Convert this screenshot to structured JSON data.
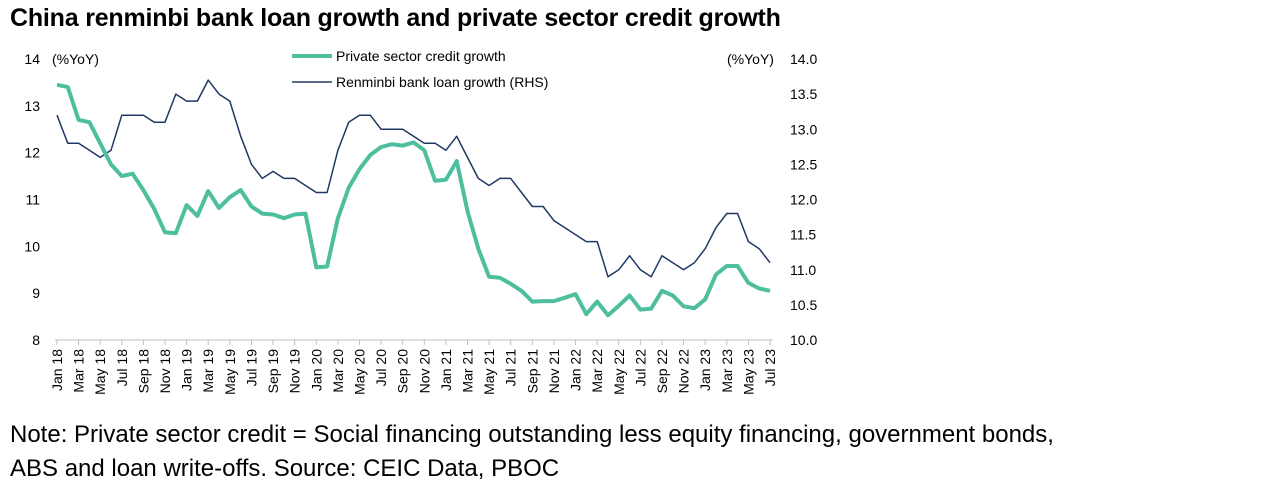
{
  "title": "China renminbi bank loan growth and private sector credit growth",
  "note": {
    "line1": "Note: Private sector credit = Social financing outstanding less equity financing, government bonds,",
    "line2": "ABS and loan write-offs. Source: CEIC Data, PBOC"
  },
  "colors": {
    "private": "#4dbf9e",
    "loan": "#1f3864"
  },
  "chart_data": {
    "type": "line",
    "title": "China renminbi bank loan growth and private sector credit growth",
    "left_axis": {
      "unit": "(%YoY)",
      "ylim": [
        8,
        14
      ],
      "ticks": [
        "14",
        "13",
        "12",
        "11",
        "10",
        "9",
        "8"
      ]
    },
    "right_axis": {
      "unit": "(%YoY)",
      "ylim": [
        10.0,
        14.0
      ],
      "ticks": [
        "14.0",
        "13.5",
        "13.0",
        "12.5",
        "12.0",
        "11.5",
        "11.0",
        "10.5",
        "10.0"
      ]
    },
    "x_tick_labels": [
      "Jan 18",
      "Mar 18",
      "May 18",
      "Jul 18",
      "Sep 18",
      "Nov 18",
      "Jan 19",
      "Mar 19",
      "May 19",
      "Jul 19",
      "Sep 19",
      "Nov 19",
      "Jan 20",
      "Mar 20",
      "May 20",
      "Jul 20",
      "Sep 20",
      "Nov 20",
      "Jan 21",
      "Mar 21",
      "May 21",
      "Jul 21",
      "Sep 21",
      "Nov 21",
      "Jan 22",
      "Mar 22",
      "May 22",
      "Jul 22",
      "Sep 22",
      "Nov 22",
      "Jan 23",
      "Mar 23",
      "May 23",
      "Jul 23"
    ],
    "x": [
      "2018-01",
      "2018-02",
      "2018-03",
      "2018-04",
      "2018-05",
      "2018-06",
      "2018-07",
      "2018-08",
      "2018-09",
      "2018-10",
      "2018-11",
      "2018-12",
      "2019-01",
      "2019-02",
      "2019-03",
      "2019-04",
      "2019-05",
      "2019-06",
      "2019-07",
      "2019-08",
      "2019-09",
      "2019-10",
      "2019-11",
      "2019-12",
      "2020-01",
      "2020-02",
      "2020-03",
      "2020-04",
      "2020-05",
      "2020-06",
      "2020-07",
      "2020-08",
      "2020-09",
      "2020-10",
      "2020-11",
      "2020-12",
      "2021-01",
      "2021-02",
      "2021-03",
      "2021-04",
      "2021-05",
      "2021-06",
      "2021-07",
      "2021-08",
      "2021-09",
      "2021-10",
      "2021-11",
      "2021-12",
      "2022-01",
      "2022-02",
      "2022-03",
      "2022-04",
      "2022-05",
      "2022-06",
      "2022-07",
      "2022-08",
      "2022-09",
      "2022-10",
      "2022-11",
      "2022-12",
      "2023-01",
      "2023-02",
      "2023-03",
      "2023-04",
      "2023-05",
      "2023-06",
      "2023-07"
    ],
    "series": [
      {
        "name": "Private sector credit growth",
        "axis": "left",
        "values": [
          13.45,
          13.4,
          12.7,
          12.65,
          12.2,
          11.75,
          11.5,
          11.55,
          11.2,
          10.8,
          10.3,
          10.28,
          10.88,
          10.65,
          11.18,
          10.82,
          11.05,
          11.2,
          10.85,
          10.7,
          10.68,
          10.6,
          10.68,
          10.7,
          9.55,
          9.57,
          10.6,
          11.25,
          11.65,
          11.95,
          12.12,
          12.18,
          12.15,
          12.22,
          12.05,
          11.4,
          11.42,
          11.82,
          10.75,
          9.95,
          9.35,
          9.33,
          9.2,
          9.05,
          8.82,
          8.83,
          8.83,
          8.9,
          8.98,
          8.55,
          8.82,
          8.53,
          8.73,
          8.95,
          8.65,
          8.67,
          9.05,
          8.95,
          8.72,
          8.68,
          8.87,
          9.4,
          9.58,
          9.58,
          9.22,
          9.1,
          9.05
        ]
      },
      {
        "name": "Renminbi bank loan growth (RHS)",
        "axis": "right",
        "values": [
          13.2,
          12.8,
          12.8,
          12.7,
          12.6,
          12.7,
          13.2,
          13.2,
          13.2,
          13.1,
          13.1,
          13.5,
          13.4,
          13.4,
          13.7,
          13.5,
          13.4,
          12.9,
          12.5,
          12.3,
          12.4,
          12.3,
          12.3,
          12.2,
          12.1,
          12.1,
          12.7,
          13.1,
          13.2,
          13.2,
          13.0,
          13.0,
          13.0,
          12.9,
          12.8,
          12.8,
          12.7,
          12.9,
          12.6,
          12.3,
          12.2,
          12.3,
          12.3,
          12.1,
          11.9,
          11.9,
          11.7,
          11.6,
          11.5,
          11.4,
          11.4,
          10.9,
          11.0,
          11.2,
          11.0,
          10.9,
          11.2,
          11.1,
          11.0,
          11.1,
          11.3,
          11.6,
          11.8,
          11.8,
          11.4,
          11.3,
          11.1
        ]
      }
    ],
    "legend": "top-center"
  }
}
